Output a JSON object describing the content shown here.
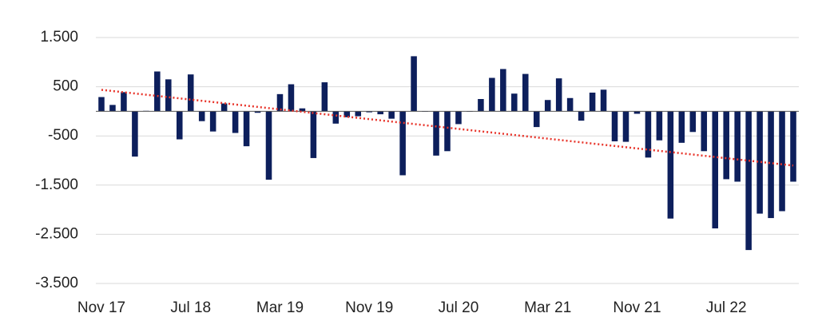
{
  "chart_data": {
    "type": "bar",
    "categories": [
      "Nov 17",
      null,
      null,
      null,
      null,
      null,
      null,
      null,
      "Jul 18",
      null,
      null,
      null,
      null,
      null,
      null,
      null,
      "Mar 19",
      null,
      null,
      null,
      null,
      null,
      null,
      null,
      "Nov 19",
      null,
      null,
      null,
      null,
      null,
      null,
      null,
      "Jul 20",
      null,
      null,
      null,
      null,
      null,
      null,
      null,
      "Mar 21",
      null,
      null,
      null,
      null,
      null,
      null,
      null,
      "Nov 21",
      null,
      null,
      null,
      null,
      null,
      null,
      null,
      "Jul 22",
      null,
      null,
      null,
      null,
      null,
      null
    ],
    "values": [
      290,
      130,
      390,
      -920,
      10,
      810,
      650,
      -570,
      750,
      -200,
      -410,
      160,
      -440,
      -710,
      -30,
      -1390,
      350,
      550,
      60,
      -950,
      590,
      -250,
      -120,
      -100,
      -20,
      -60,
      -150,
      -1300,
      1120,
      0,
      -900,
      -810,
      -260,
      0,
      250,
      680,
      860,
      360,
      760,
      -320,
      230,
      670,
      270,
      -190,
      380,
      440,
      -610,
      -620,
      -50,
      -940,
      -590,
      -2180,
      -640,
      -420,
      -810,
      -2380,
      -1380,
      -1430,
      -2820,
      -2080,
      -2170,
      -2030,
      -1430
    ],
    "color": "#0d1f5c",
    "trend": {
      "color": "#e8352b",
      "values": [
        437,
        -1102
      ]
    },
    "ylim": [
      -3500,
      1500
    ],
    "yticks": [
      {
        "value": 1500,
        "label": "1.500"
      },
      500,
      -500,
      {
        "value": -1500,
        "label": "-1.500"
      },
      {
        "value": -2500,
        "label": "-2.500"
      },
      {
        "value": -3500,
        "label": "-3.500"
      }
    ],
    "grid": true
  }
}
